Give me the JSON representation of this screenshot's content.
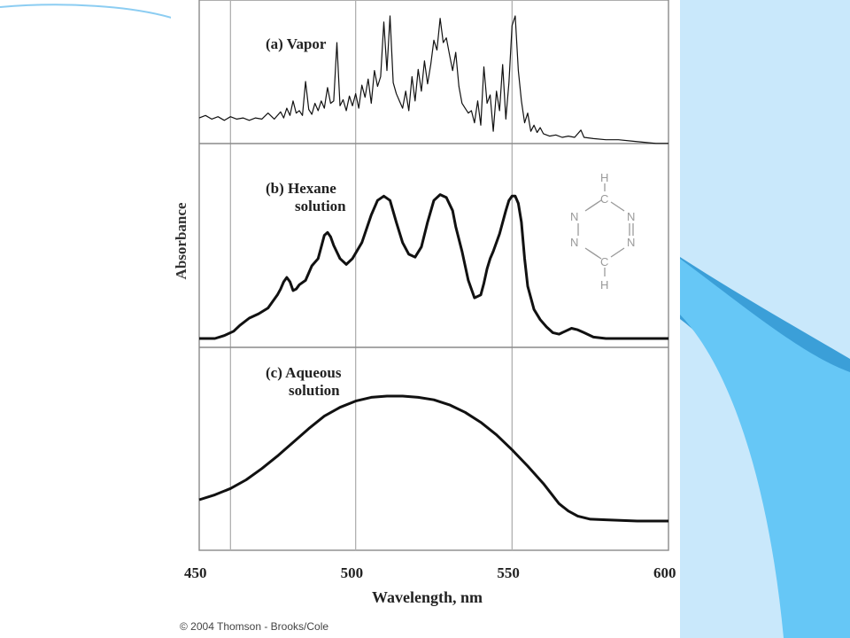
{
  "slide": {
    "colors": {
      "background": "#ffffff",
      "right_band_light": "#c9e8fb",
      "right_band_bright": "#66c7f6",
      "right_band_dark": "#3b9fd8",
      "top_arc": "#8ccdf2"
    }
  },
  "copyright": "© 2004 Thomson - Brooks/Cole",
  "molecule": {
    "name_icon": "tetrazine-structure-icon",
    "atoms": [
      "H",
      "C",
      "N",
      "N",
      "N",
      "N",
      "C",
      "H"
    ]
  },
  "chart_data": {
    "type": "line",
    "title": "",
    "xlabel": "Wavelength, nm",
    "ylabel": "Absorbance",
    "xlim": [
      450,
      600
    ],
    "xticks": [
      450,
      500,
      550,
      600
    ],
    "grid": "vertical lines at 460, 500, 550",
    "grid_x": [
      460,
      500,
      550
    ],
    "line_color": "#111111",
    "panels": [
      {
        "label_lines": [
          "(a) Vapor"
        ],
        "ylim": [
          0,
          1
        ],
        "line_width": 1.2,
        "points": [
          [
            450,
            0.16
          ],
          [
            452,
            0.18
          ],
          [
            454,
            0.15
          ],
          [
            456,
            0.17
          ],
          [
            458,
            0.14
          ],
          [
            460,
            0.17
          ],
          [
            462,
            0.15
          ],
          [
            464,
            0.16
          ],
          [
            466,
            0.14
          ],
          [
            468,
            0.16
          ],
          [
            470,
            0.15
          ],
          [
            472,
            0.2
          ],
          [
            474,
            0.15
          ],
          [
            476,
            0.21
          ],
          [
            477,
            0.16
          ],
          [
            478,
            0.24
          ],
          [
            479,
            0.18
          ],
          [
            480,
            0.3
          ],
          [
            481,
            0.2
          ],
          [
            482,
            0.22
          ],
          [
            483,
            0.18
          ],
          [
            484,
            0.46
          ],
          [
            485,
            0.23
          ],
          [
            486,
            0.19
          ],
          [
            487,
            0.28
          ],
          [
            488,
            0.22
          ],
          [
            489,
            0.3
          ],
          [
            490,
            0.24
          ],
          [
            491,
            0.41
          ],
          [
            492,
            0.28
          ],
          [
            493,
            0.3
          ],
          [
            494,
            0.78
          ],
          [
            495,
            0.26
          ],
          [
            496,
            0.31
          ],
          [
            497,
            0.22
          ],
          [
            498,
            0.34
          ],
          [
            499,
            0.26
          ],
          [
            500,
            0.36
          ],
          [
            501,
            0.24
          ],
          [
            502,
            0.43
          ],
          [
            503,
            0.33
          ],
          [
            504,
            0.48
          ],
          [
            505,
            0.28
          ],
          [
            506,
            0.55
          ],
          [
            507,
            0.42
          ],
          [
            508,
            0.5
          ],
          [
            509,
            0.95
          ],
          [
            510,
            0.55
          ],
          [
            511,
            1.0
          ],
          [
            512,
            0.45
          ],
          [
            513,
            0.36
          ],
          [
            514,
            0.3
          ],
          [
            515,
            0.24
          ],
          [
            516,
            0.38
          ],
          [
            517,
            0.22
          ],
          [
            518,
            0.5
          ],
          [
            519,
            0.3
          ],
          [
            520,
            0.56
          ],
          [
            521,
            0.38
          ],
          [
            522,
            0.63
          ],
          [
            523,
            0.44
          ],
          [
            524,
            0.6
          ],
          [
            525,
            0.8
          ],
          [
            526,
            0.72
          ],
          [
            527,
            0.98
          ],
          [
            528,
            0.78
          ],
          [
            529,
            0.82
          ],
          [
            530,
            0.68
          ],
          [
            531,
            0.55
          ],
          [
            532,
            0.7
          ],
          [
            533,
            0.42
          ],
          [
            534,
            0.28
          ],
          [
            535,
            0.24
          ],
          [
            536,
            0.2
          ],
          [
            537,
            0.22
          ],
          [
            538,
            0.12
          ],
          [
            539,
            0.3
          ],
          [
            540,
            0.1
          ],
          [
            541,
            0.58
          ],
          [
            542,
            0.28
          ],
          [
            543,
            0.35
          ],
          [
            544,
            0.05
          ],
          [
            545,
            0.38
          ],
          [
            546,
            0.22
          ],
          [
            547,
            0.6
          ],
          [
            548,
            0.15
          ],
          [
            549,
            0.45
          ],
          [
            550,
            0.92
          ],
          [
            551,
            1.0
          ],
          [
            552,
            0.55
          ],
          [
            553,
            0.3
          ],
          [
            554,
            0.12
          ],
          [
            555,
            0.2
          ],
          [
            556,
            0.05
          ],
          [
            557,
            0.1
          ],
          [
            558,
            0.04
          ],
          [
            559,
            0.08
          ],
          [
            560,
            0.03
          ],
          [
            562,
            0.01
          ],
          [
            564,
            0.02
          ],
          [
            566,
            0.0
          ],
          [
            568,
            0.01
          ],
          [
            570,
            0.0
          ],
          [
            572,
            0.06
          ],
          [
            573,
            0.0
          ],
          [
            576,
            -0.01
          ],
          [
            580,
            -0.02
          ],
          [
            584,
            -0.02
          ],
          [
            588,
            -0.03
          ],
          [
            592,
            -0.04
          ],
          [
            596,
            -0.05
          ],
          [
            600,
            -0.05
          ]
        ]
      },
      {
        "label_lines": [
          "(b) Hexane",
          "solution"
        ],
        "ylim": [
          0,
          1
        ],
        "line_width": 3,
        "points": [
          [
            450,
            0.0
          ],
          [
            455,
            0.0
          ],
          [
            458,
            0.02
          ],
          [
            461,
            0.05
          ],
          [
            463,
            0.09
          ],
          [
            466,
            0.14
          ],
          [
            469,
            0.17
          ],
          [
            472,
            0.21
          ],
          [
            475,
            0.3
          ],
          [
            476,
            0.34
          ],
          [
            477,
            0.39
          ],
          [
            478,
            0.42
          ],
          [
            479,
            0.39
          ],
          [
            480,
            0.33
          ],
          [
            481,
            0.34
          ],
          [
            482,
            0.37
          ],
          [
            484,
            0.4
          ],
          [
            486,
            0.5
          ],
          [
            488,
            0.55
          ],
          [
            489,
            0.63
          ],
          [
            490,
            0.71
          ],
          [
            491,
            0.73
          ],
          [
            492,
            0.7
          ],
          [
            493,
            0.64
          ],
          [
            495,
            0.55
          ],
          [
            497,
            0.51
          ],
          [
            499,
            0.55
          ],
          [
            502,
            0.66
          ],
          [
            505,
            0.85
          ],
          [
            507,
            0.95
          ],
          [
            509,
            0.98
          ],
          [
            511,
            0.95
          ],
          [
            513,
            0.8
          ],
          [
            515,
            0.66
          ],
          [
            517,
            0.58
          ],
          [
            519,
            0.56
          ],
          [
            521,
            0.63
          ],
          [
            523,
            0.8
          ],
          [
            525,
            0.95
          ],
          [
            527,
            0.99
          ],
          [
            529,
            0.97
          ],
          [
            531,
            0.88
          ],
          [
            532,
            0.77
          ],
          [
            534,
            0.6
          ],
          [
            536,
            0.4
          ],
          [
            538,
            0.28
          ],
          [
            540,
            0.3
          ],
          [
            541,
            0.38
          ],
          [
            542,
            0.48
          ],
          [
            543,
            0.55
          ],
          [
            544,
            0.6
          ],
          [
            546,
            0.72
          ],
          [
            548,
            0.88
          ],
          [
            549,
            0.95
          ],
          [
            550,
            0.98
          ],
          [
            551,
            0.98
          ],
          [
            552,
            0.93
          ],
          [
            553,
            0.8
          ],
          [
            554,
            0.55
          ],
          [
            555,
            0.36
          ],
          [
            557,
            0.2
          ],
          [
            559,
            0.13
          ],
          [
            561,
            0.08
          ],
          [
            563,
            0.04
          ],
          [
            565,
            0.03
          ],
          [
            567,
            0.05
          ],
          [
            569,
            0.07
          ],
          [
            571,
            0.06
          ],
          [
            573,
            0.04
          ],
          [
            576,
            0.01
          ],
          [
            580,
            0.0
          ],
          [
            590,
            0.0
          ],
          [
            600,
            0.0
          ]
        ]
      },
      {
        "label_lines": [
          "(c) Aqueous",
          "solution"
        ],
        "ylim": [
          0,
          1
        ],
        "line_width": 3,
        "points": [
          [
            450,
            0.17
          ],
          [
            455,
            0.21
          ],
          [
            460,
            0.26
          ],
          [
            465,
            0.33
          ],
          [
            470,
            0.42
          ],
          [
            475,
            0.52
          ],
          [
            480,
            0.63
          ],
          [
            485,
            0.74
          ],
          [
            490,
            0.84
          ],
          [
            495,
            0.91
          ],
          [
            500,
            0.96
          ],
          [
            505,
            0.99
          ],
          [
            510,
            1.0
          ],
          [
            515,
            1.0
          ],
          [
            520,
            0.99
          ],
          [
            525,
            0.97
          ],
          [
            530,
            0.93
          ],
          [
            535,
            0.87
          ],
          [
            540,
            0.79
          ],
          [
            545,
            0.69
          ],
          [
            550,
            0.57
          ],
          [
            555,
            0.44
          ],
          [
            560,
            0.3
          ],
          [
            565,
            0.14
          ],
          [
            568,
            0.08
          ],
          [
            571,
            0.04
          ],
          [
            575,
            0.015
          ],
          [
            580,
            0.01
          ],
          [
            590,
            0.0
          ],
          [
            600,
            0.0
          ]
        ]
      }
    ]
  }
}
